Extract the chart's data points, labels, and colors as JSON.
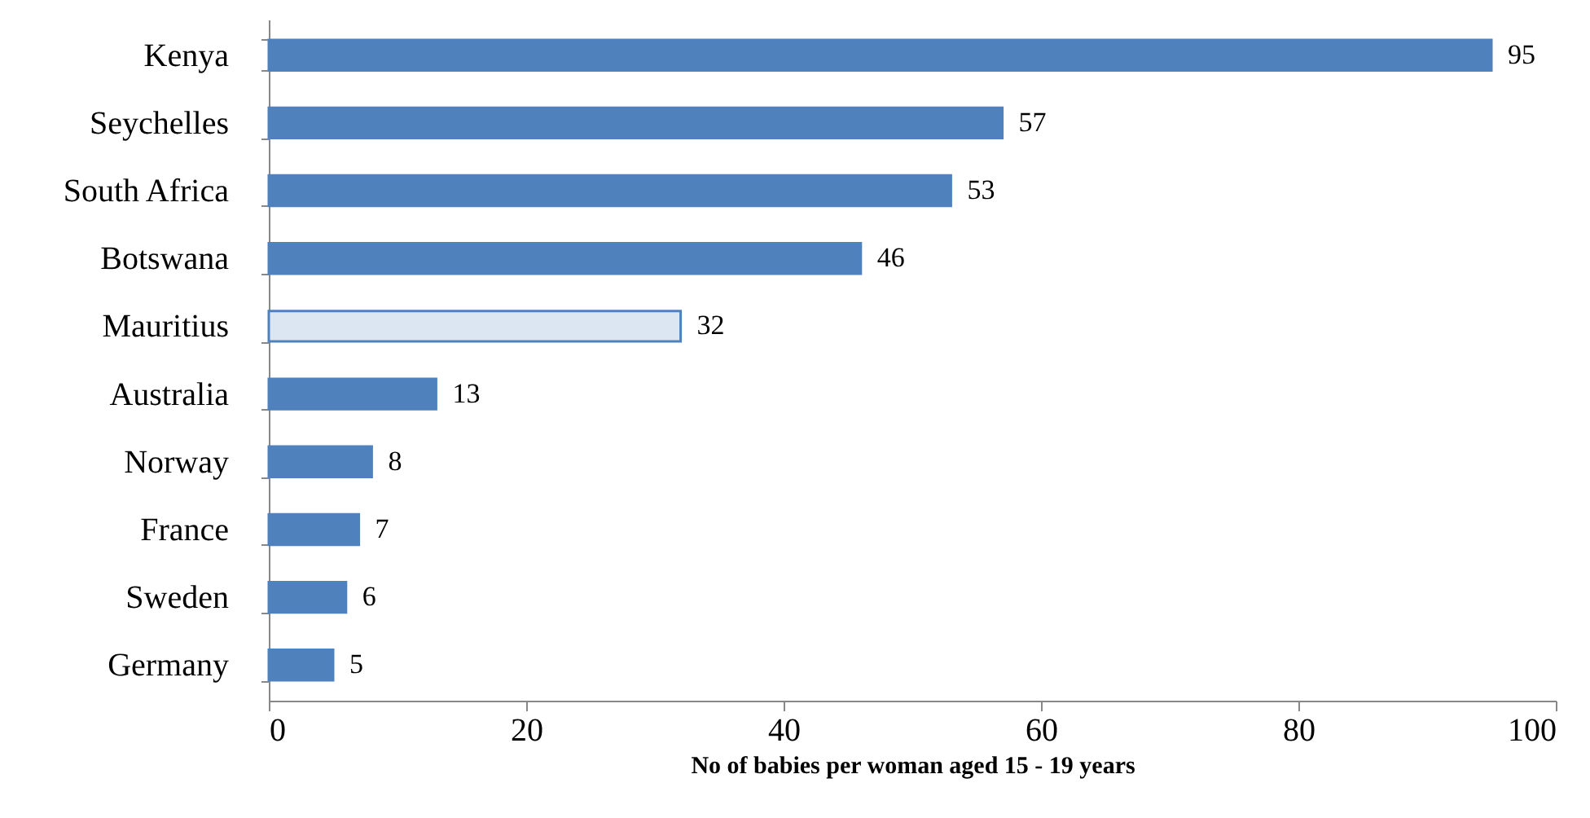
{
  "chart_data": {
    "type": "bar",
    "orientation": "horizontal",
    "xlabel": "No of babies per woman aged 15 - 19 years",
    "categories": [
      "Kenya",
      "Seychelles",
      "South Africa",
      "Botswana",
      "Mauritius",
      "Australia",
      "Norway",
      "France",
      "Sweden",
      "Germany"
    ],
    "values": [
      95,
      57,
      53,
      46,
      32,
      13,
      8,
      7,
      6,
      5
    ],
    "colors": [
      "#4f81bd",
      "#4f81bd",
      "#4f81bd",
      "#4f81bd",
      "#dce6f2",
      "#4f81bd",
      "#4f81bd",
      "#4f81bd",
      "#4f81bd",
      "#4f81bd"
    ],
    "xlim": [
      0,
      100
    ],
    "xticks": [
      0,
      20,
      40,
      60,
      80,
      100
    ],
    "data_labels": true,
    "grid": false
  }
}
